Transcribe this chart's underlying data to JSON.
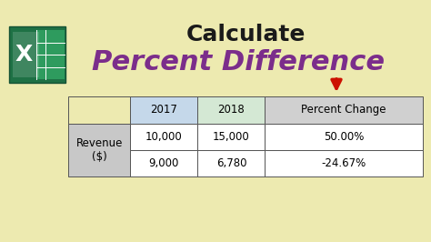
{
  "bg_color": "#edeab0",
  "title1": "Calculate",
  "title1_color": "#1a1a1a",
  "title1_fontsize": 18,
  "title2": "Percent Difference",
  "title2_color": "#7b2d8b",
  "title2_fontsize": 22,
  "table_col_labels": [
    "",
    "2017",
    "2018",
    "Percent Change"
  ],
  "table_row_label": "Revenue\n($)",
  "table_data": [
    [
      "10,000",
      "15,000",
      "50.00%"
    ],
    [
      "9,000",
      "6,780",
      "-24.67%"
    ]
  ],
  "header_col1_bg": "#c5d8ea",
  "header_col2_bg": "#d4e8d4",
  "header_col3_bg": "#d0d0d0",
  "row_label_bg": "#c8c8c8",
  "data_bg": "#ffffff",
  "arrow_color": "#cc1100",
  "excel_green_dark": "#1e7145",
  "excel_green_light": "#2e9b5e",
  "excel_x_color": "#ffffff",
  "border_color": "#555555"
}
